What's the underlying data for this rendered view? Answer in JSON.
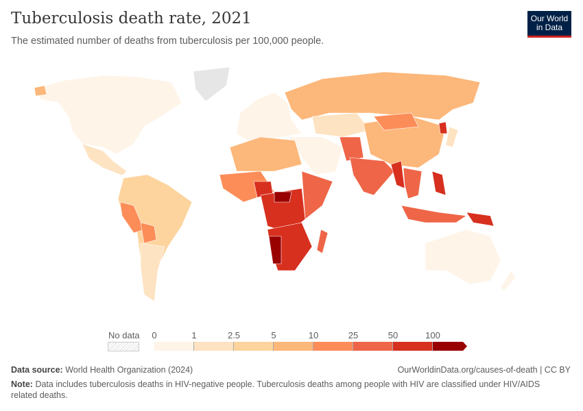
{
  "header": {
    "title": "Tuberculosis death rate, 2021",
    "subtitle": "The estimated number of deaths from tuberculosis per 100,000 people.",
    "logo": "Our World in Data",
    "logo_line1": "Our World",
    "logo_line2": "in Data"
  },
  "legend": {
    "no_data_label": "No data",
    "ticks": [
      "0",
      "1",
      "2.5",
      "5",
      "10",
      "25",
      "50",
      "100"
    ],
    "colors": [
      "#fef4e8",
      "#fee3c2",
      "#fdd49e",
      "#fcb77a",
      "#fc8d59",
      "#ef6548",
      "#d7301f",
      "#990000"
    ]
  },
  "footer": {
    "source_label": "Data source:",
    "source": "World Health Organization (2024)",
    "url": "OurWorldinData.org/causes-of-death | CC BY",
    "note_label": "Note:",
    "note": "Data includes tuberculosis deaths in HIV-negative people. Tuberculosis deaths among people with HIV are classified under HIV/AIDS related deaths."
  }
}
